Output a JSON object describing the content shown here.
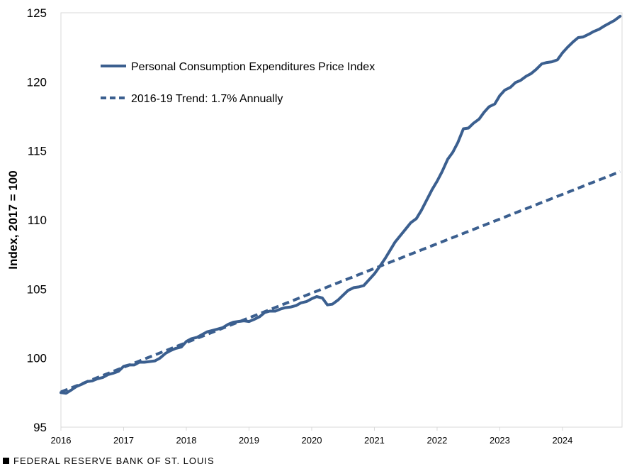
{
  "colors": {
    "series": "#3b5f8f",
    "axis": "#d9d9d9",
    "text": "#000000"
  },
  "footer": "FEDERAL RESERVE BANK OF ST. LOUIS",
  "chart_data": {
    "type": "line",
    "ylabel": "Index, 2017 = 100",
    "xlabel": "",
    "ylim": [
      95,
      125
    ],
    "xlim": [
      2016.0,
      2024.95
    ],
    "yticks": [
      95,
      100,
      105,
      110,
      115,
      120,
      125
    ],
    "xticks": [
      "2016",
      "2017",
      "2018",
      "2019",
      "2020",
      "2021",
      "2022",
      "2023",
      "2024"
    ],
    "grid": false,
    "legend": "top-left inside",
    "series": [
      {
        "name": "Personal Consumption Expenditures Price Index",
        "style": "solid",
        "points": [
          [
            2016.0,
            97.5
          ],
          [
            2016.08,
            97.45
          ],
          [
            2016.17,
            97.7
          ],
          [
            2016.25,
            97.95
          ],
          [
            2016.33,
            98.1
          ],
          [
            2016.42,
            98.3
          ],
          [
            2016.5,
            98.35
          ],
          [
            2016.58,
            98.5
          ],
          [
            2016.67,
            98.6
          ],
          [
            2016.75,
            98.8
          ],
          [
            2016.83,
            98.9
          ],
          [
            2016.92,
            99.05
          ],
          [
            2017.0,
            99.4
          ],
          [
            2017.08,
            99.5
          ],
          [
            2017.17,
            99.5
          ],
          [
            2017.25,
            99.7
          ],
          [
            2017.33,
            99.7
          ],
          [
            2017.42,
            99.75
          ],
          [
            2017.5,
            99.8
          ],
          [
            2017.58,
            100.0
          ],
          [
            2017.67,
            100.35
          ],
          [
            2017.75,
            100.55
          ],
          [
            2017.83,
            100.7
          ],
          [
            2017.92,
            100.8
          ],
          [
            2018.0,
            101.2
          ],
          [
            2018.08,
            101.4
          ],
          [
            2018.17,
            101.5
          ],
          [
            2018.25,
            101.7
          ],
          [
            2018.33,
            101.9
          ],
          [
            2018.42,
            102.0
          ],
          [
            2018.5,
            102.1
          ],
          [
            2018.58,
            102.2
          ],
          [
            2018.67,
            102.45
          ],
          [
            2018.75,
            102.6
          ],
          [
            2018.83,
            102.65
          ],
          [
            2018.92,
            102.7
          ],
          [
            2019.0,
            102.65
          ],
          [
            2019.08,
            102.8
          ],
          [
            2019.17,
            103.0
          ],
          [
            2019.25,
            103.3
          ],
          [
            2019.33,
            103.4
          ],
          [
            2019.42,
            103.4
          ],
          [
            2019.5,
            103.55
          ],
          [
            2019.58,
            103.65
          ],
          [
            2019.67,
            103.7
          ],
          [
            2019.75,
            103.8
          ],
          [
            2019.83,
            104.0
          ],
          [
            2019.92,
            104.1
          ],
          [
            2020.0,
            104.3
          ],
          [
            2020.08,
            104.45
          ],
          [
            2020.17,
            104.35
          ],
          [
            2020.25,
            103.85
          ],
          [
            2020.33,
            103.9
          ],
          [
            2020.42,
            104.2
          ],
          [
            2020.5,
            104.55
          ],
          [
            2020.58,
            104.9
          ],
          [
            2020.67,
            105.1
          ],
          [
            2020.75,
            105.15
          ],
          [
            2020.83,
            105.25
          ],
          [
            2020.92,
            105.7
          ],
          [
            2021.0,
            106.1
          ],
          [
            2021.08,
            106.6
          ],
          [
            2021.17,
            107.2
          ],
          [
            2021.25,
            107.8
          ],
          [
            2021.33,
            108.4
          ],
          [
            2021.42,
            108.9
          ],
          [
            2021.5,
            109.35
          ],
          [
            2021.58,
            109.8
          ],
          [
            2021.67,
            110.1
          ],
          [
            2021.75,
            110.7
          ],
          [
            2021.83,
            111.4
          ],
          [
            2021.92,
            112.2
          ],
          [
            2022.0,
            112.8
          ],
          [
            2022.08,
            113.5
          ],
          [
            2022.17,
            114.4
          ],
          [
            2022.25,
            114.9
          ],
          [
            2022.33,
            115.6
          ],
          [
            2022.42,
            116.6
          ],
          [
            2022.5,
            116.65
          ],
          [
            2022.58,
            117.0
          ],
          [
            2022.67,
            117.3
          ],
          [
            2022.75,
            117.8
          ],
          [
            2022.83,
            118.2
          ],
          [
            2022.92,
            118.4
          ],
          [
            2023.0,
            119.0
          ],
          [
            2023.08,
            119.4
          ],
          [
            2023.17,
            119.6
          ],
          [
            2023.25,
            119.95
          ],
          [
            2023.33,
            120.1
          ],
          [
            2023.42,
            120.4
          ],
          [
            2023.5,
            120.6
          ],
          [
            2023.58,
            120.9
          ],
          [
            2023.67,
            121.3
          ],
          [
            2023.75,
            121.4
          ],
          [
            2023.83,
            121.45
          ],
          [
            2023.92,
            121.6
          ],
          [
            2024.0,
            122.1
          ],
          [
            2024.08,
            122.5
          ],
          [
            2024.17,
            122.9
          ],
          [
            2024.25,
            123.2
          ],
          [
            2024.33,
            123.25
          ],
          [
            2024.42,
            123.45
          ],
          [
            2024.5,
            123.65
          ],
          [
            2024.58,
            123.8
          ],
          [
            2024.67,
            124.05
          ],
          [
            2024.75,
            124.25
          ],
          [
            2024.83,
            124.45
          ],
          [
            2024.92,
            124.75
          ]
        ]
      },
      {
        "name": "2016-19 Trend: 1.7% Annually",
        "style": "dashed",
        "points": [
          [
            2016.0,
            97.55
          ],
          [
            2024.92,
            113.5
          ]
        ]
      }
    ]
  }
}
